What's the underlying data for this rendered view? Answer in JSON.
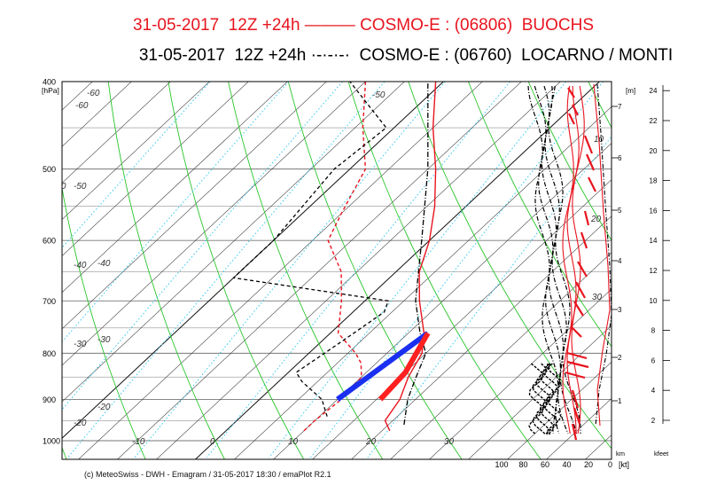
{
  "header": {
    "line1": "31-05-2017  12Z +24h ——— COSMO-E : (06806)  BUOCHS",
    "line2": "31-05-2017  12Z +24h ·-·-·-·  COSMO-E : (06760)  LOCARNO / MONTI"
  },
  "footer": {
    "credit": "(c) MeteoSwiss - DWH - Emagram / 31-05-2017  18:30 / emaPlot R2.1"
  },
  "colors": {
    "station1": "#e8141e",
    "station2": "#000000",
    "dry_adiabat": "#2ac52a",
    "isotherm": "#333333",
    "mixing_ratio": "#33c8f0",
    "parcel_blue": "#1a2ff0",
    "parcel_red": "#ff2020"
  },
  "chart_data": {
    "type": "line",
    "title": "Emagram",
    "ylabel": "[hPa]",
    "pressure_ticks": [
      400,
      500,
      600,
      700,
      800,
      900,
      1000
    ],
    "temperature_bottom_labels": [
      "-10",
      "0",
      "10",
      "20",
      "30"
    ],
    "temperature_top_labels": [
      "-60",
      "-50",
      "-40",
      "-30",
      "-20"
    ],
    "isotherm_inline_labels": [
      "-60",
      "-50",
      "-40",
      "-30",
      "-20"
    ],
    "altitude_km_ticks": [
      "1",
      "2",
      "3",
      "4",
      "5",
      "6",
      "7"
    ],
    "altitude_km_label": "[m]",
    "km_unit": "km",
    "kfeet_ticks": [
      "2",
      "4",
      "6",
      "8",
      "10",
      "12",
      "14",
      "16",
      "18",
      "20",
      "22",
      "24"
    ],
    "kfeet_unit": "kfeet",
    "wind_axis_ticks": [
      "100",
      "80",
      "60",
      "40",
      "20",
      "0"
    ],
    "wind_axis_unit": "[kt]",
    "wind_inline_labels": [
      "10",
      "20",
      "30"
    ],
    "series": [
      {
        "name": "COSMO-E : (06806)  BUOCHS",
        "style": "solid",
        "temperature": [
          [
            975,
            21
          ],
          [
            950,
            19
          ],
          [
            900,
            18
          ],
          [
            850,
            16
          ],
          [
            800,
            14.5
          ],
          [
            760,
            12
          ],
          [
            700,
            7
          ],
          [
            650,
            3
          ],
          [
            600,
            0
          ],
          [
            550,
            -4
          ],
          [
            500,
            -9
          ],
          [
            450,
            -15
          ],
          [
            400,
            -21
          ]
        ],
        "dewpoint": [
          [
            975,
            10
          ],
          [
            950,
            10
          ],
          [
            900,
            10.5
          ],
          [
            850,
            10
          ],
          [
            820,
            8
          ],
          [
            800,
            6
          ],
          [
            760,
            1
          ],
          [
            700,
            -3
          ],
          [
            650,
            -7
          ],
          [
            600,
            -13
          ],
          [
            560,
            -15
          ],
          [
            500,
            -18
          ],
          [
            450,
            -24
          ],
          [
            400,
            -30
          ]
        ]
      },
      {
        "name": "COSMO-E : (06760)  LOCARNO / MONTI",
        "style": "dash-dot",
        "temperature": [
          [
            960,
            22
          ],
          [
            900,
            19
          ],
          [
            850,
            17
          ],
          [
            800,
            15
          ],
          [
            760,
            11.5
          ],
          [
            700,
            6.5
          ],
          [
            600,
            -1
          ],
          [
            500,
            -10
          ],
          [
            400,
            -22
          ]
        ],
        "dewpoint": [
          [
            940,
            11
          ],
          [
            900,
            8
          ],
          [
            860,
            3
          ],
          [
            840,
            1
          ],
          [
            800,
            2
          ],
          [
            760,
            3
          ],
          [
            720,
            4
          ],
          [
            700,
            3
          ],
          [
            660,
            -20
          ],
          [
            600,
            -20
          ],
          [
            500,
            -22
          ],
          [
            450,
            -21
          ],
          [
            400,
            -32
          ]
        ]
      }
    ],
    "parcel_blue": [
      [
        900,
        10
      ],
      [
        760,
        12.5
      ]
    ],
    "parcel_red": [
      [
        760,
        12.5
      ],
      [
        840,
        15
      ],
      [
        900,
        15.5
      ]
    ]
  }
}
